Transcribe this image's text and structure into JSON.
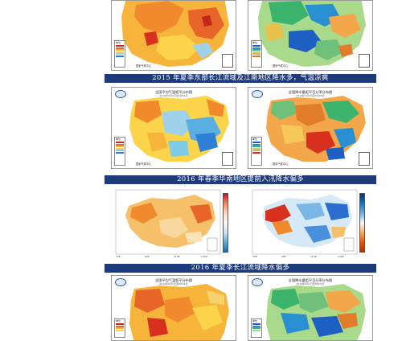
{
  "banners": [
    {
      "text": "2015 年夏季东部长江流域及江南地区降水多，气温凉爽"
    },
    {
      "text": "2016 年春季华南地区提前入汛降水偏多"
    },
    {
      "text": "2016 年夏季长江流域降水偏多"
    }
  ],
  "cards": {
    "summer2015_temp": {
      "title": "全国平均气温距平分布图",
      "subtitle": "2015年6月1日至8月31日",
      "org": "国家气候中心",
      "legend_title": "单位"
    },
    "summer2015_precip": {
      "title": "全国降水量距平百分率分布图",
      "subtitle": "2015年6月1日至8月31日",
      "org": "国家气候中心",
      "legend_title": "单位"
    },
    "spring2016_temp": {
      "title": "全国平均气温距平分布图",
      "subtitle": "2016年3月1日至5月31日",
      "org": "国家气候中心",
      "legend_title": "单位"
    },
    "spring2016_precip": {
      "title": "全国降水量距平百分率分布图",
      "subtitle": "2016年3月1日至5月31日",
      "org": "国家气候中心",
      "legend_title": "单位"
    },
    "summer2016_temp": {
      "title": "全国平均气温距平分布图",
      "subtitle": "2016年6月1日至8月31日",
      "org": "国家气候中心",
      "legend_title": "单位"
    },
    "summer2016_precip": {
      "title": "全国降水量距平百分率分布图",
      "subtitle": "2016年6月1日至8月31日",
      "org": "国家气候中心",
      "legend_title": "单位"
    }
  },
  "ensemble_maps": {
    "temp": {
      "colorbar_labels": [
        "3",
        "2",
        "1",
        "0",
        "-1",
        "-2",
        "-3"
      ],
      "x_ticks": [
        "70E",
        "80E",
        "90E",
        "100E",
        "110E",
        "120E",
        "130E",
        "140E"
      ]
    },
    "precip": {
      "colorbar_labels": [
        "100",
        "50",
        "20",
        "0",
        "-20",
        "-50",
        "-80"
      ],
      "x_ticks": [
        "70E",
        "80E",
        "90E",
        "100E",
        "110E",
        "120E",
        "130E",
        "140E"
      ]
    }
  },
  "colors": {
    "banner_bg": "#1f3a7a",
    "warm_red": "#d7301f",
    "warm_orange": "#f08a2c",
    "warm_yellow": "#fbd44a",
    "cool_blue": "#2f7fd6",
    "cool_cyan": "#7ecbe8",
    "wet_green": "#3db46d",
    "wet_blue": "#1d5fc2"
  }
}
